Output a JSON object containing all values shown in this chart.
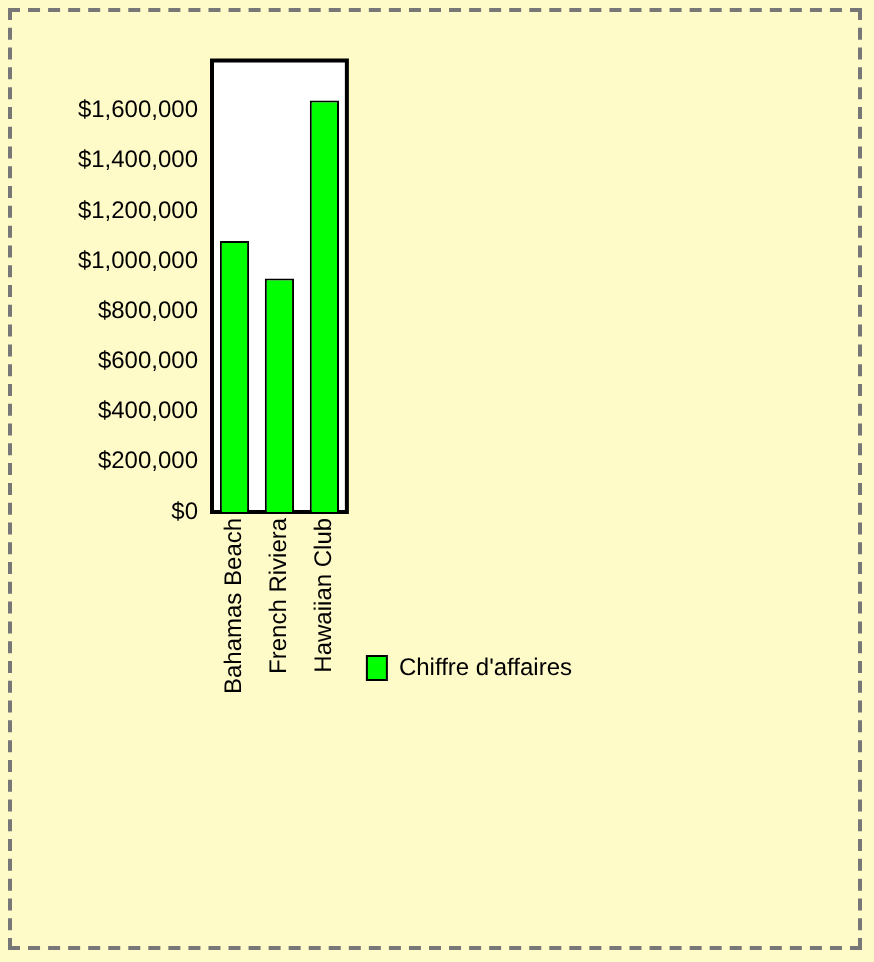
{
  "chart_data": {
    "type": "bar",
    "categories": [
      "Bahamas Beach",
      "French Riviera",
      "Hawaiian Club"
    ],
    "series": [
      {
        "name": "Chiffre d'affaires",
        "color": "#00ff00",
        "values": [
          1080000,
          930000,
          1640000
        ]
      }
    ],
    "ylim": [
      0,
      1800000
    ],
    "yticks": [
      {
        "value": 0,
        "label": "$0"
      },
      {
        "value": 200000,
        "label": "$200,000"
      },
      {
        "value": 400000,
        "label": "$400,000"
      },
      {
        "value": 600000,
        "label": "$600,000"
      },
      {
        "value": 800000,
        "label": "$800,000"
      },
      {
        "value": 1000000,
        "label": "$1,000,000"
      },
      {
        "value": 1200000,
        "label": "$1,200,000"
      },
      {
        "value": 1400000,
        "label": "$1,400,000"
      },
      {
        "value": 1600000,
        "label": "$1,600,000"
      },
      {
        "value": 1800000,
        "label": null
      }
    ],
    "grid": false,
    "legend": "right"
  }
}
